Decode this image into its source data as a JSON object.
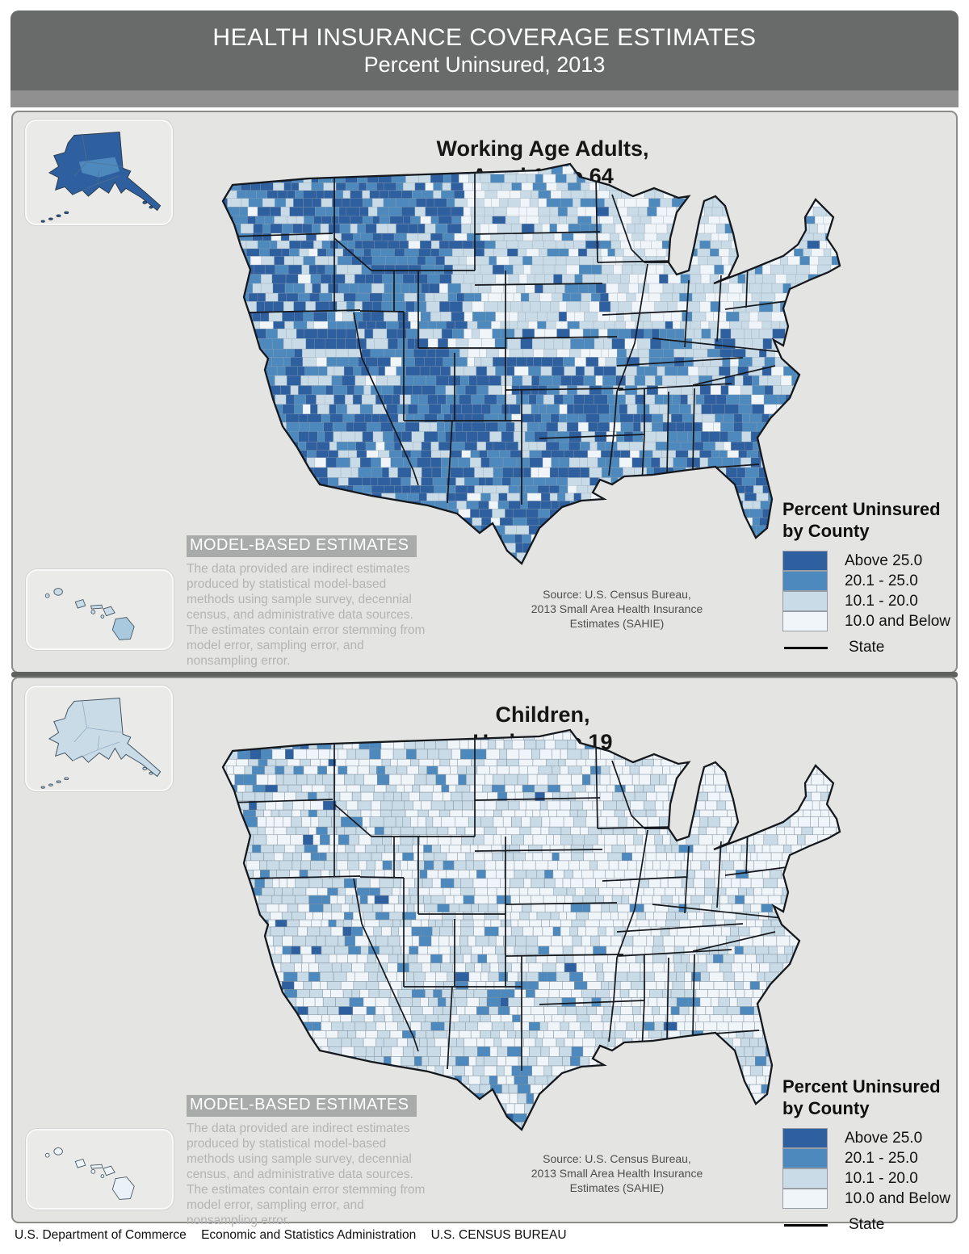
{
  "header": {
    "title": "HEALTH INSURANCE COVERAGE ESTIMATES",
    "subtitle": "Percent Uninsured, 2013"
  },
  "panels": {
    "adults": {
      "title_line1": "Working Age Adults,",
      "title_line2": "Aged 18 to 64"
    },
    "children": {
      "title_line1": "Children,",
      "title_line2": "Under Age 19"
    }
  },
  "legend": {
    "title": "Percent Uninsured\nby County",
    "classes": [
      {
        "label": "Above 25.0",
        "color": "#2e5f9f"
      },
      {
        "label": "20.1 - 25.0",
        "color": "#4d89bd"
      },
      {
        "label": "10.1 - 20.0",
        "color": "#c8dbe6"
      },
      {
        "label": "10.0 and Below",
        "color": "#f0f5fa"
      }
    ],
    "state_label": "State"
  },
  "model_based_note": {
    "label": "MODEL-BASED ESTIMATES",
    "body": "The data provided are indirect estimates produced by statistical model-based methods using sample survey, decennial census, and administrative data sources. The estimates contain error stemming from model error, sampling error, and nonsampling error."
  },
  "source_note": {
    "text": "Source:  U.S. Census Bureau,\n2013 Small Area Health Insurance\nEstimates (SAHIE)"
  },
  "footer": {
    "agency1": "U.S. Department of Commerce",
    "agency2": "Economic and Statistics Administration",
    "agency3": "U.S. CENSUS BUREAU"
  },
  "map_data": {
    "type": "choropleth",
    "year": 2013,
    "measure": "Percent Uninsured",
    "geography": "U.S. counties",
    "maps": [
      {
        "population": "Working Age Adults, Aged 18 to 64",
        "pattern": "Above-25% counties dominate the West, Southwest, Texas, the Deep South and Florida; 10%-and-below counties dominate the Northeast and upper Midwest; Alaska mostly above 25%, Hawaii 10.1-20%"
      },
      {
        "population": "Children, Under Age 19",
        "pattern": "Most counties 10.0% and below; scattered 10.1-20% counties across the West; isolated 20.1%+ counties in Texas, Montana, Nevada and Arizona; Alaska 10.1-20%, Hawaii mostly 10% and below"
      }
    ]
  }
}
